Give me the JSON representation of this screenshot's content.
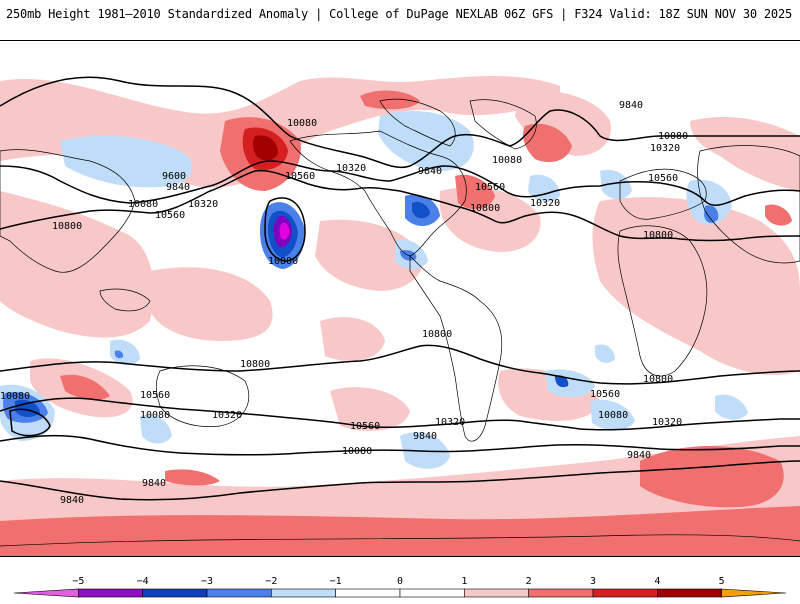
{
  "header": {
    "title": "250mb Height 1981–2010 Standardized Anomaly | College of DuPage NEXLAB",
    "run_info": "06Z GFS | F324 Valid: 18Z SUN NOV 30 2025"
  },
  "map": {
    "projection": "global cylindrical",
    "contour_labels": [
      "10080",
      "9600",
      "9840",
      "10080",
      "10560",
      "10320",
      "10800",
      "10320",
      "10560",
      "10800",
      "9840",
      "10800",
      "10560",
      "10080",
      "10800",
      "9840",
      "10080",
      "10320",
      "10560",
      "10800",
      "10320",
      "10080",
      "10560",
      "10320",
      "10080",
      "9840",
      "10320",
      "10560",
      "10080",
      "9840",
      "10800",
      "10800",
      "9840"
    ],
    "colors": {
      "neg5": "#e000e0",
      "neg4": "#8000c0",
      "neg3": "#1050c8",
      "neg2": "#4a80e8",
      "neg1": "#bfdcf8",
      "zero": "#ffffff",
      "pos1": "#f8c8c8",
      "pos2": "#f07070",
      "pos3": "#d42020",
      "pos4": "#a00000",
      "pos5": "#f0a000",
      "coast": "#000000",
      "contour": "#000000"
    }
  },
  "colorbar": {
    "ticks": [
      "−5",
      "−4",
      "−3",
      "−2",
      "−1",
      "0",
      "1",
      "2",
      "3",
      "4",
      "5"
    ],
    "segment_colors": [
      "#e060e0",
      "#9010c0",
      "#1040b8",
      "#4a80e8",
      "#bfdcf8",
      "#ffffff",
      "#ffffff",
      "#f8c8c8",
      "#f07070",
      "#d42020",
      "#a00000",
      "#f0a000"
    ]
  }
}
